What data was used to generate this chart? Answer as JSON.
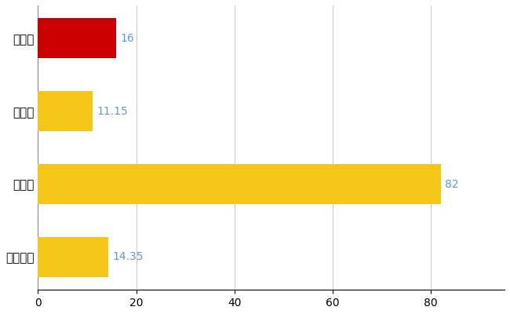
{
  "categories": [
    "三沢市",
    "県平均",
    "県最大",
    "全国平均"
  ],
  "values": [
    16,
    11.15,
    82,
    14.35
  ],
  "bar_colors": [
    "#cc0000",
    "#f5c518",
    "#f5c518",
    "#f5c518"
  ],
  "value_labels": [
    "16",
    "11.15",
    "82",
    "14.35"
  ],
  "value_label_color": "#6699cc",
  "xlim": [
    0,
    95
  ],
  "xticks": [
    0,
    20,
    40,
    60,
    80
  ],
  "grid_color": "#cccccc",
  "background_color": "#ffffff",
  "bar_height": 0.55,
  "label_fontsize": 11,
  "tick_fontsize": 10
}
